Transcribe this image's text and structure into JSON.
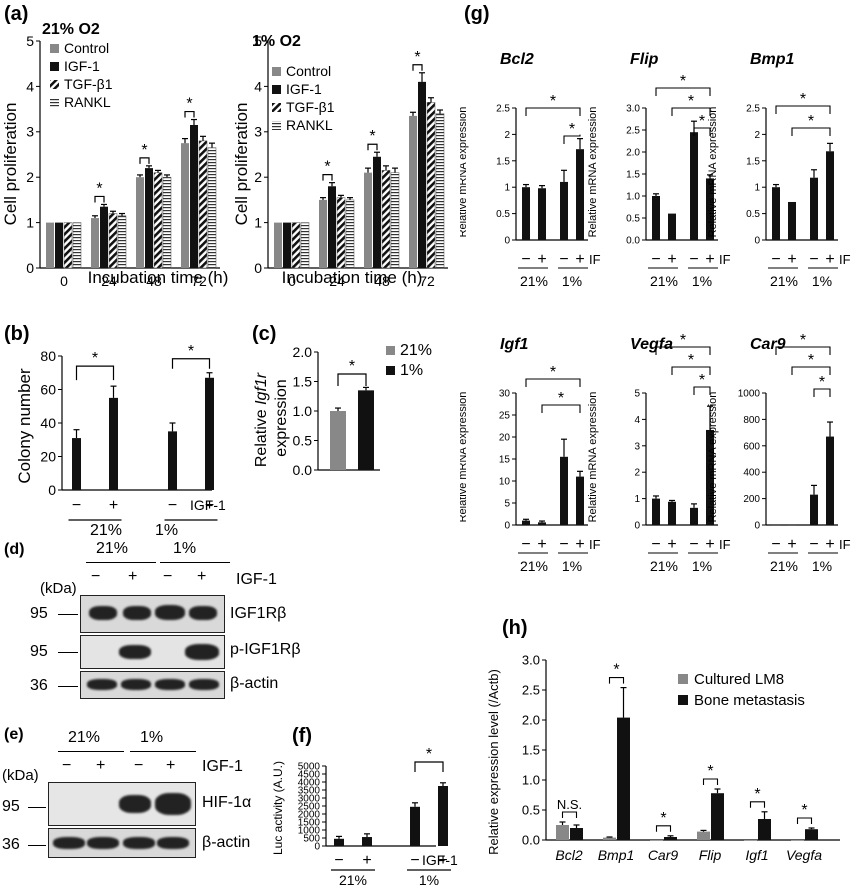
{
  "panels": {
    "a": {
      "label": "(a)",
      "titles": [
        "21% O2",
        "1% O2"
      ],
      "ylabel": "Cell proliferation",
      "xlabel": "Incubation time (h)",
      "legend": [
        "Control",
        "IGF-1",
        "TGF-β1",
        "RANKL"
      ]
    },
    "b": {
      "label": "(b)",
      "ylabel": "Colony number",
      "treatment": "IGF-1",
      "groups": [
        "21%",
        "1%"
      ],
      "signs": [
        "−",
        "+",
        "−",
        "+"
      ]
    },
    "c": {
      "label": "(c)",
      "ylabel_parts": [
        "Relative ",
        "Igf1r",
        "expression"
      ],
      "legend": [
        "21%",
        "1%"
      ]
    },
    "d": {
      "label": "(d)",
      "groups": [
        "21%",
        "1%"
      ],
      "kda": "(kDa)",
      "signs": [
        "−",
        "+",
        "−",
        "+"
      ],
      "treatment": "IGF-1",
      "rows": [
        {
          "marker": "95",
          "name": "IGF1Rβ"
        },
        {
          "marker": "95",
          "name": "p-IGF1Rβ"
        },
        {
          "marker": "36",
          "name": "β-actin"
        }
      ]
    },
    "e": {
      "label": "(e)",
      "groups": [
        "21%",
        "1%"
      ],
      "kda": "(kDa)",
      "signs": [
        "−",
        "+",
        "−",
        "+"
      ],
      "treatment": "IGF-1",
      "rows": [
        {
          "marker": "95",
          "name": "HIF-1α"
        },
        {
          "marker": "36",
          "name": "β-actin"
        }
      ]
    },
    "f": {
      "label": "(f)",
      "ylabel": "Luc activity (A.U.)",
      "treatment": "IGF-1",
      "groups": [
        "21%",
        "1%"
      ],
      "signs": [
        "−",
        "+",
        "−",
        "+"
      ]
    },
    "g": {
      "label": "(g)",
      "ylabel": "Relative mRNA expression",
      "treatment": "IF",
      "groups": [
        "21%",
        "1%"
      ],
      "signs": [
        "−",
        "+",
        "−",
        "+"
      ]
    },
    "h": {
      "label": "(h)",
      "ylabel": "Relative expression level (/Actb)",
      "legend": [
        "Cultured LM8",
        "Bone metastasis"
      ],
      "ns": "N.S."
    }
  },
  "star": "*",
  "chart_data": [
    {
      "id": "a-21",
      "type": "bar",
      "title": "21% O2",
      "categories": [
        "0",
        "24",
        "48",
        "72"
      ],
      "series": [
        {
          "name": "Control",
          "values": [
            1.0,
            1.1,
            2.0,
            2.75
          ],
          "err": [
            0,
            0.05,
            0.05,
            0.1
          ]
        },
        {
          "name": "IGF-1",
          "values": [
            1.0,
            1.35,
            2.2,
            3.15
          ],
          "err": [
            0,
            0.05,
            0.05,
            0.12
          ]
        },
        {
          "name": "TGF-β1",
          "values": [
            1.0,
            1.2,
            2.1,
            2.8
          ],
          "err": [
            0,
            0.05,
            0.05,
            0.1
          ]
        },
        {
          "name": "RANKL",
          "values": [
            1.0,
            1.15,
            2.0,
            2.65
          ],
          "err": [
            0,
            0.05,
            0.05,
            0.1
          ]
        }
      ],
      "ylim": [
        0,
        5
      ],
      "yticks": [
        0,
        1,
        2,
        3,
        4,
        5
      ]
    },
    {
      "id": "a-1",
      "type": "bar",
      "title": "1% O2",
      "categories": [
        "0",
        "24",
        "48",
        "72"
      ],
      "series": [
        {
          "name": "Control",
          "values": [
            1.0,
            1.5,
            2.1,
            3.35
          ],
          "err": [
            0,
            0.05,
            0.1,
            0.08
          ]
        },
        {
          "name": "IGF-1",
          "values": [
            1.0,
            1.8,
            2.45,
            4.1
          ],
          "err": [
            0,
            0.08,
            0.1,
            0.2
          ]
        },
        {
          "name": "TGF-β1",
          "values": [
            1.0,
            1.55,
            2.15,
            3.65
          ],
          "err": [
            0,
            0.05,
            0.1,
            0.1
          ]
        },
        {
          "name": "RANKL",
          "values": [
            1.0,
            1.5,
            2.1,
            3.4
          ],
          "err": [
            0,
            0.05,
            0.1,
            0.08
          ]
        }
      ],
      "ylim": [
        0,
        5
      ],
      "yticks": [
        0,
        1,
        2,
        3,
        4,
        5
      ]
    },
    {
      "id": "b",
      "type": "bar",
      "values": [
        31,
        55,
        35,
        67
      ],
      "err": [
        5,
        7,
        5,
        3
      ],
      "ylim": [
        0,
        80
      ],
      "yticks": [
        0,
        20,
        40,
        60,
        80
      ]
    },
    {
      "id": "c",
      "type": "bar",
      "categories": [
        "21%",
        "1%"
      ],
      "values": [
        1.0,
        1.35
      ],
      "err": [
        0.05,
        0.05
      ],
      "ylim": [
        0,
        2.0
      ],
      "yticks": [
        "0.0",
        "0.5",
        "1.0",
        "1.5",
        "2.0"
      ]
    },
    {
      "id": "f",
      "type": "bar",
      "values": [
        450,
        560,
        2450,
        3750
      ],
      "err": [
        150,
        200,
        250,
        200
      ],
      "ylim": [
        0,
        5000
      ],
      "yticks": [
        0,
        500,
        1000,
        1500,
        2000,
        2500,
        3000,
        3500,
        4000,
        4500,
        5000
      ]
    },
    {
      "id": "g-bcl2",
      "type": "bar",
      "title": "Bcl2",
      "values": [
        1.0,
        0.98,
        1.1,
        1.72
      ],
      "err": [
        0.05,
        0.05,
        0.22,
        0.2
      ],
      "ylim": [
        0,
        2.5
      ],
      "yticks": [
        0,
        0.5,
        1,
        1.5,
        2,
        2.5
      ]
    },
    {
      "id": "g-flip",
      "type": "bar",
      "title": "Flip",
      "values": [
        1.0,
        0.6,
        2.45,
        1.4
      ],
      "err": [
        0.05,
        0,
        0.25,
        0.08
      ],
      "ylim": [
        0,
        3.0
      ],
      "yticks": [
        "0.0",
        "0.5",
        "1.0",
        "1.5",
        "2.0",
        "2.5",
        "3.0"
      ]
    },
    {
      "id": "g-bmp1",
      "type": "bar",
      "title": "Bmp1",
      "values": [
        1.0,
        0.72,
        1.18,
        1.68
      ],
      "err": [
        0.05,
        0,
        0.15,
        0.15
      ],
      "ylim": [
        0,
        2.5
      ],
      "yticks": [
        0,
        0.5,
        1,
        1.5,
        2,
        2.5
      ]
    },
    {
      "id": "g-igf1",
      "type": "bar",
      "title": "Igf1",
      "values": [
        1,
        0.6,
        15.5,
        11
      ],
      "err": [
        0.3,
        0.3,
        4,
        1.2
      ],
      "ylim": [
        0,
        30
      ],
      "yticks": [
        0,
        5,
        10,
        15,
        20,
        25,
        30
      ]
    },
    {
      "id": "g-vegfa",
      "type": "bar",
      "title": "Vegfa",
      "values": [
        1.0,
        0.88,
        0.65,
        3.6
      ],
      "err": [
        0.1,
        0.05,
        0.15,
        0.9
      ],
      "ylim": [
        0,
        5
      ],
      "yticks": [
        0,
        1,
        2,
        3,
        4,
        5
      ]
    },
    {
      "id": "g-car9",
      "type": "bar",
      "title": "Car9",
      "values": [
        1,
        1,
        230,
        670
      ],
      "err": [
        0,
        0,
        70,
        110
      ],
      "ylim": [
        0,
        1000
      ],
      "yticks": [
        0,
        200,
        400,
        600,
        800,
        1000
      ]
    },
    {
      "id": "h",
      "type": "bar",
      "categories": [
        "Bcl2",
        "Bmp1",
        "Car9",
        "Flip",
        "Igf1",
        "Vegfa"
      ],
      "series": [
        {
          "name": "Cultured LM8",
          "values": [
            0.25,
            0.04,
            0.0,
            0.14,
            0.0,
            0.0
          ],
          "err": [
            0.05,
            0.01,
            0,
            0.02,
            0,
            0
          ]
        },
        {
          "name": "Bone metastasis",
          "values": [
            0.2,
            2.04,
            0.05,
            0.78,
            0.35,
            0.18
          ],
          "err": [
            0.05,
            0.5,
            0.02,
            0.07,
            0.12,
            0.02
          ]
        }
      ],
      "ylim": [
        0,
        3.0
      ],
      "yticks": [
        "0.0",
        "0.5",
        "1.0",
        "1.5",
        "2.0",
        "2.5",
        "3.0"
      ]
    }
  ]
}
